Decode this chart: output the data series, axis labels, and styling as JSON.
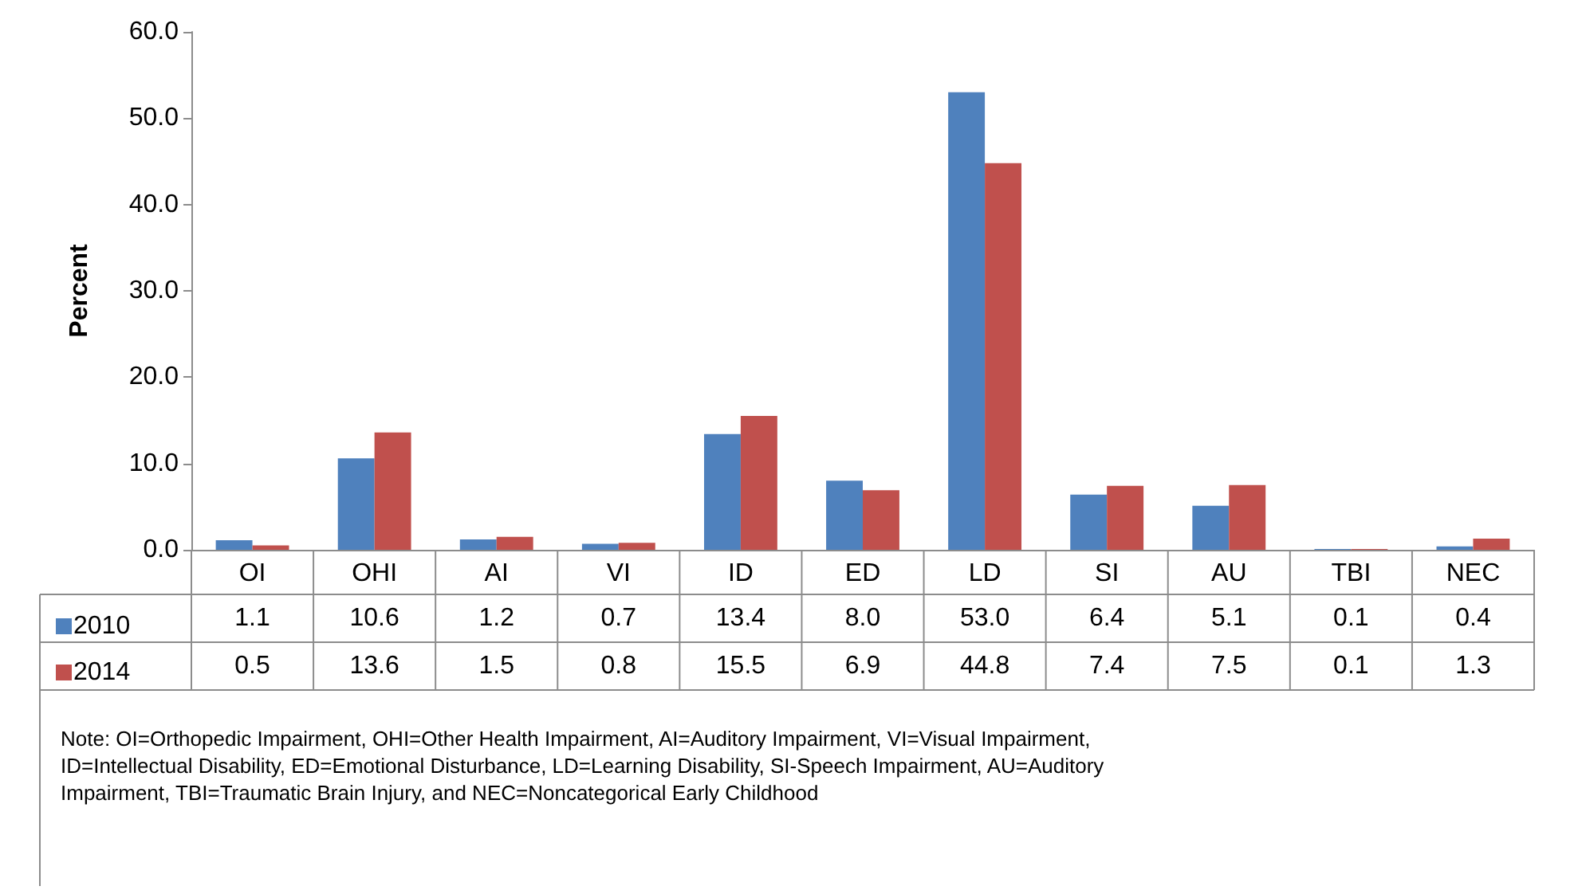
{
  "chart_data": {
    "type": "bar",
    "ylabel": "Percent",
    "categories": [
      "OI",
      "OHI",
      "AI",
      "VI",
      "ID",
      "ED",
      "LD",
      "SI",
      "AU",
      "TBI",
      "NEC"
    ],
    "series": [
      {
        "name": "2010",
        "color": "#4f81bd",
        "values": [
          1.1,
          10.6,
          1.2,
          0.7,
          13.4,
          8.0,
          53.0,
          6.4,
          5.1,
          0.1,
          0.4
        ],
        "value_labels": [
          "1.1",
          "10.6",
          "1.2",
          "0.7",
          "13.4",
          "8.0",
          "53.0",
          "6.4",
          "5.1",
          "0.1",
          "0.4"
        ]
      },
      {
        "name": "2014",
        "color": "#c0504d",
        "values": [
          0.5,
          13.6,
          1.5,
          0.8,
          15.5,
          6.9,
          44.8,
          7.4,
          7.5,
          0.1,
          1.3
        ],
        "value_labels": [
          "0.5",
          "13.6",
          "1.5",
          "0.8",
          "15.5",
          "6.9",
          "44.8",
          "7.4",
          "7.5",
          "0.1",
          "1.3"
        ]
      }
    ],
    "ylim": [
      0,
      60
    ],
    "yticks": [
      {
        "value": 0,
        "label": "0.0"
      },
      {
        "value": 10,
        "label": "10.0"
      },
      {
        "value": 20,
        "label": "20.0"
      },
      {
        "value": 30,
        "label": "30.0"
      },
      {
        "value": 40,
        "label": "40.0"
      },
      {
        "value": 50,
        "label": "50.0"
      },
      {
        "value": 60,
        "label": "60.0"
      }
    ],
    "grid": false,
    "legend": "bottom left",
    "annotations": [
      "Note: OI=Orthopedic Impairment, OHI=Other Health Impairment, AI=Auditory Impairment, VI=Visual Impairment, ID=Intellectual Disability, ED=Emotional Disturbance, LD=Learning Disability, SI-Speech Impairment, AU=Auditory Impairment, TBI=Traumatic Brain Injury, and NEC=Noncategorical Early Childhood"
    ]
  }
}
